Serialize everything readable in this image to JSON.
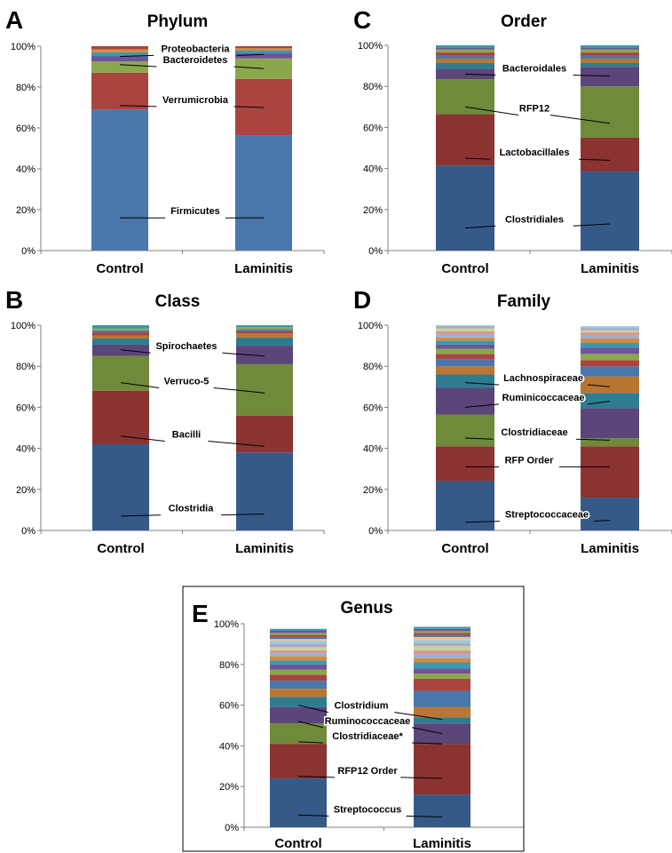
{
  "figure": {
    "panels": [
      "A",
      "B",
      "C",
      "D",
      "E"
    ]
  },
  "chart_data": [
    {
      "panel": "A",
      "type": "bar",
      "stacked": true,
      "title": "Phylum",
      "categories": [
        "Control",
        "Laminitis"
      ],
      "ylim": [
        0,
        100
      ],
      "yticks": [
        "0%",
        "20%",
        "40%",
        "60%",
        "80%",
        "100%"
      ],
      "grid": false,
      "series": [
        {
          "name": "Firmicutes",
          "color": "#4a76aa",
          "values": [
            69,
            56.5
          ]
        },
        {
          "name": "Verrumicrobia",
          "color": "#a9443f",
          "values": [
            18,
            27.5
          ]
        },
        {
          "name": "Bacteroidetes",
          "color": "#8aa84b",
          "values": [
            5.5,
            10
          ]
        },
        {
          "name": "",
          "color": "#6e5597",
          "values": [
            2.5,
            2.5
          ]
        },
        {
          "name": "Proteobacteria",
          "color": "#3b98b0",
          "values": [
            2,
            1.5
          ]
        },
        {
          "name": "",
          "color": "#d98a38",
          "values": [
            1.5,
            1
          ]
        },
        {
          "name": "",
          "color": "#a9443f",
          "values": [
            1.5,
            1
          ]
        }
      ],
      "annotations": [
        {
          "label": "Proteobacteria",
          "bar_y": [
            95,
            96
          ]
        },
        {
          "label": "Bacteroidetes",
          "bar_y": [
            91,
            89
          ]
        },
        {
          "label": "Verrumicrobia",
          "bar_y": [
            71,
            70
          ]
        },
        {
          "label": "Firmicutes",
          "bar_y": [
            16,
            16
          ]
        }
      ]
    },
    {
      "panel": "B",
      "type": "bar",
      "stacked": true,
      "title": "Class",
      "categories": [
        "Control",
        "Laminitis"
      ],
      "ylim": [
        0,
        100
      ],
      "yticks": [
        "0%",
        "20%",
        "40%",
        "60%",
        "80%",
        "100%"
      ],
      "grid": false,
      "series": [
        {
          "name": "Clostridia",
          "color": "#355a88",
          "values": [
            42,
            38
          ]
        },
        {
          "name": "Bacilli",
          "color": "#8b3331",
          "values": [
            26,
            18
          ]
        },
        {
          "name": "Verruco-5",
          "color": "#6f8a3a",
          "values": [
            17,
            25
          ]
        },
        {
          "name": "Spirochaetes",
          "color": "#5b4579",
          "values": [
            5.5,
            9
          ]
        },
        {
          "name": "",
          "color": "#2f7c91",
          "values": [
            3,
            4
          ]
        },
        {
          "name": "",
          "color": "#b97630",
          "values": [
            1.5,
            2
          ]
        },
        {
          "name": "",
          "color": "#a9443f",
          "values": [
            1.5,
            1
          ]
        },
        {
          "name": "",
          "color": "#4a76aa",
          "values": [
            1,
            1
          ]
        },
        {
          "name": "",
          "color": "#8aa84b",
          "values": [
            1,
            1
          ]
        },
        {
          "name": "",
          "color": "#3b98b0",
          "values": [
            1.5,
            1
          ]
        }
      ],
      "annotations": [
        {
          "label": "Spirochaetes",
          "bar_y": [
            88,
            85
          ]
        },
        {
          "label": "Verruco-5",
          "bar_y": [
            72,
            67
          ]
        },
        {
          "label": "Bacilli",
          "bar_y": [
            46,
            41
          ]
        },
        {
          "label": "Clostridia",
          "bar_y": [
            7,
            8
          ]
        }
      ]
    },
    {
      "panel": "C",
      "type": "bar",
      "stacked": true,
      "title": "Order",
      "categories": [
        "Control",
        "Laminitis"
      ],
      "ylim": [
        0,
        100
      ],
      "yticks": [
        "0%",
        "20%",
        "40%",
        "60%",
        "80%",
        "100%"
      ],
      "grid": false,
      "series": [
        {
          "name": "Clostridiales",
          "color": "#355a88",
          "values": [
            41.5,
            38.5
          ]
        },
        {
          "name": "Lactobacillales",
          "color": "#8b3331",
          "values": [
            25,
            16.5
          ]
        },
        {
          "name": "RFP12",
          "color": "#6f8a3a",
          "values": [
            17,
            25
          ]
        },
        {
          "name": "Bacteroidales",
          "color": "#5b4579",
          "values": [
            5,
            9.5
          ]
        },
        {
          "name": "",
          "color": "#2f7c91",
          "values": [
            3,
            2
          ]
        },
        {
          "name": "",
          "color": "#b97630",
          "values": [
            2,
            2
          ]
        },
        {
          "name": "",
          "color": "#4a76aa",
          "values": [
            1.5,
            1.5
          ]
        },
        {
          "name": "",
          "color": "#a9443f",
          "values": [
            1.5,
            1.5
          ]
        },
        {
          "name": "",
          "color": "#8aa84b",
          "values": [
            1.5,
            1.5
          ]
        },
        {
          "name": "",
          "color": "#6e5597",
          "values": [
            1,
            1
          ]
        },
        {
          "name": "",
          "color": "#3b98b0",
          "values": [
            1,
            1
          ]
        }
      ],
      "annotations": [
        {
          "label": "Bacteroidales",
          "bar_y": [
            86,
            85
          ]
        },
        {
          "label": "RFP12",
          "bar_y": [
            70,
            62
          ]
        },
        {
          "label": "Lactobacillales",
          "bar_y": [
            45,
            44
          ]
        },
        {
          "label": "Clostridiales",
          "bar_y": [
            11,
            13
          ]
        }
      ]
    },
    {
      "panel": "D",
      "type": "bar",
      "stacked": true,
      "title": "Family",
      "categories": [
        "Control",
        "Laminitis"
      ],
      "ylim": [
        0,
        100
      ],
      "yticks": [
        "0%",
        "20%",
        "40%",
        "60%",
        "80%",
        "100%"
      ],
      "grid": false,
      "series": [
        {
          "name": "Streptococcaceae",
          "color": "#355a88",
          "values": [
            24,
            16
          ]
        },
        {
          "name": "RFP Order",
          "color": "#8b3331",
          "values": [
            17,
            25
          ]
        },
        {
          "name": "Clostridiaceae",
          "color": "#6f8a3a",
          "values": [
            15.5,
            4
          ]
        },
        {
          "name": "Ruminicoccaceae",
          "color": "#5b4579",
          "values": [
            13,
            14.5
          ]
        },
        {
          "name": "",
          "color": "#2f7c91",
          "values": [
            6.5,
            7.5
          ]
        },
        {
          "name": "Lachnospiraceae",
          "color": "#b97630",
          "values": [
            4,
            8
          ]
        },
        {
          "name": "",
          "color": "#4a76aa",
          "values": [
            3.5,
            5
          ]
        },
        {
          "name": "",
          "color": "#a9443f",
          "values": [
            2.5,
            3
          ]
        },
        {
          "name": "",
          "color": "#8aa84b",
          "values": [
            2.5,
            3
          ]
        },
        {
          "name": "",
          "color": "#6e5597",
          "values": [
            2,
            3
          ]
        },
        {
          "name": "",
          "color": "#3b98b0",
          "values": [
            2,
            2.5
          ]
        },
        {
          "name": "",
          "color": "#d98a38",
          "values": [
            1.5,
            2
          ]
        },
        {
          "name": "",
          "color": "#95b3d7",
          "values": [
            1.5,
            1.5
          ]
        },
        {
          "name": "",
          "color": "#d99694",
          "values": [
            1.5,
            1.5
          ]
        },
        {
          "name": "",
          "color": "#c3d69b",
          "values": [
            1.5,
            1
          ]
        },
        {
          "name": "",
          "color": "#b3a2c7",
          "values": [
            1,
            1
          ]
        },
        {
          "name": "",
          "color": "#93cddd",
          "values": [
            1,
            1
          ]
        }
      ],
      "annotations": [
        {
          "label": "Lachnospiraceae",
          "bar_y": [
            72,
            70
          ]
        },
        {
          "label": "Ruminicoccaceae",
          "bar_y": [
            60,
            63
          ]
        },
        {
          "label": "Clostridiaceae",
          "bar_y": [
            45,
            44
          ]
        },
        {
          "label": "RFP  Order",
          "bar_y": [
            31,
            31
          ]
        },
        {
          "label": "Streptococcaceae",
          "bar_y": [
            4,
            5
          ]
        }
      ]
    },
    {
      "panel": "E",
      "type": "bar",
      "stacked": true,
      "title": "Genus",
      "categories": [
        "Control",
        "Laminitis"
      ],
      "ylim": [
        0,
        100
      ],
      "yticks": [
        "0%",
        "20%",
        "40%",
        "60%",
        "80%",
        "100%"
      ],
      "grid": false,
      "series": [
        {
          "name": "Streptococcus",
          "color": "#355a88",
          "values": [
            24,
            16
          ]
        },
        {
          "name": "RFP12 Order",
          "color": "#8b3331",
          "values": [
            17,
            25
          ]
        },
        {
          "name": "Clostridiaceae*",
          "color": "#6f8a3a",
          "values": [
            10,
            0
          ]
        },
        {
          "name": "Ruminococcaceae",
          "color": "#5b4579",
          "values": [
            8,
            10
          ]
        },
        {
          "name": "",
          "color": "#2f7c91",
          "values": [
            5,
            3
          ]
        },
        {
          "name": "",
          "color": "#b97630",
          "values": [
            4,
            5
          ]
        },
        {
          "name": "Clostridium",
          "color": "#4a76aa",
          "values": [
            4,
            8
          ]
        },
        {
          "name": "",
          "color": "#a9443f",
          "values": [
            3,
            6
          ]
        },
        {
          "name": "",
          "color": "#8aa84b",
          "values": [
            2.5,
            2.5
          ]
        },
        {
          "name": "",
          "color": "#6e5597",
          "values": [
            2.5,
            2.5
          ]
        },
        {
          "name": "",
          "color": "#3b98b0",
          "values": [
            2,
            3
          ]
        },
        {
          "name": "",
          "color": "#d98a38",
          "values": [
            2,
            2
          ]
        },
        {
          "name": "",
          "color": "#95b3d7",
          "values": [
            1.5,
            2
          ]
        },
        {
          "name": "",
          "color": "#d99694",
          "values": [
            1.5,
            2
          ]
        },
        {
          "name": "",
          "color": "#c3d69b",
          "values": [
            1.5,
            2
          ]
        },
        {
          "name": "",
          "color": "#b3a2c7",
          "values": [
            1.5,
            1.5
          ]
        },
        {
          "name": "",
          "color": "#93cddd",
          "values": [
            1.5,
            1.5
          ]
        },
        {
          "name": "",
          "color": "#fac090",
          "values": [
            1,
            1.5
          ]
        },
        {
          "name": "",
          "color": "#4a76aa",
          "values": [
            1,
            1
          ]
        },
        {
          "name": "",
          "color": "#a9443f",
          "values": [
            1,
            1
          ]
        },
        {
          "name": "",
          "color": "#8aa84b",
          "values": [
            1,
            1
          ]
        },
        {
          "name": "",
          "color": "#6e5597",
          "values": [
            1,
            1
          ]
        },
        {
          "name": "",
          "color": "#3b98b0",
          "values": [
            1,
            1
          ]
        }
      ],
      "annotations": [
        {
          "label": "Clostridium",
          "bar_y": [
            60,
            53
          ]
        },
        {
          "label": "Ruminococcaceae",
          "bar_y": [
            52,
            46
          ]
        },
        {
          "label": "Clostridiaceae*",
          "bar_y": [
            42,
            41
          ]
        },
        {
          "label": "RFP12 Order",
          "bar_y": [
            25,
            24
          ]
        },
        {
          "label": "Streptococcus",
          "bar_y": [
            6,
            5
          ]
        }
      ]
    }
  ]
}
